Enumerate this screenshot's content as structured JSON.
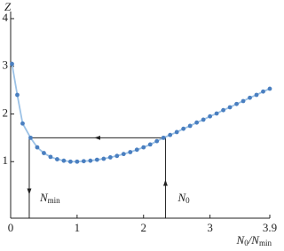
{
  "chart_data": {
    "type": "line",
    "ylabel": "Z",
    "xlabel": [
      "N",
      "0",
      "/N",
      "min"
    ],
    "x": [
      0.02,
      0.1,
      0.18,
      0.3,
      0.4,
      0.5,
      0.6,
      0.7,
      0.8,
      0.9,
      1.0,
      1.1,
      1.2,
      1.3,
      1.4,
      1.5,
      1.6,
      1.7,
      1.8,
      1.9,
      2.0,
      2.1,
      2.2,
      2.3,
      2.4,
      2.5,
      2.6,
      2.7,
      2.8,
      2.9,
      3.0,
      3.1,
      3.2,
      3.3,
      3.4,
      3.5,
      3.6,
      3.7,
      3.8,
      3.9
    ],
    "series": [
      {
        "color": "#4a7fc0",
        "line_color": "#9cc2e6",
        "values": [
          3.05,
          2.4,
          1.8,
          1.5,
          1.3,
          1.18,
          1.1,
          1.05,
          1.02,
          1.0,
          1.0,
          1.01,
          1.02,
          1.04,
          1.06,
          1.09,
          1.12,
          1.16,
          1.2,
          1.25,
          1.3,
          1.36,
          1.43,
          1.5,
          1.56,
          1.62,
          1.69,
          1.75,
          1.82,
          1.88,
          1.95,
          2.01,
          2.08,
          2.14,
          2.21,
          2.27,
          2.34,
          2.4,
          2.47,
          2.53
        ]
      }
    ],
    "xlim": [
      0,
      3.9
    ],
    "ylim": [
      0,
      4
    ],
    "xticks": [
      0,
      1,
      2,
      3,
      3.9
    ],
    "yticks": [
      1,
      2,
      3,
      4
    ],
    "level": 1.5,
    "markers": [
      {
        "label": "N",
        "subscript": "min",
        "x": 0.28
      },
      {
        "label": "N",
        "subscript": "0",
        "x": 2.33
      }
    ]
  }
}
